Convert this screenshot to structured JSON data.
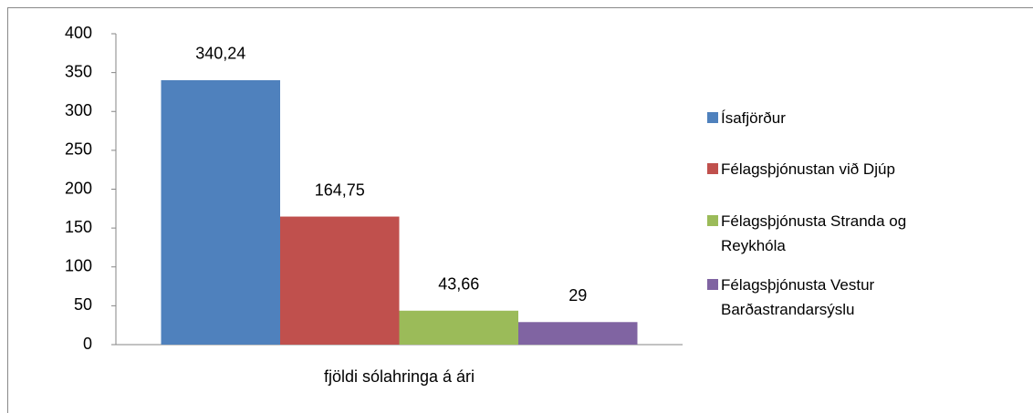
{
  "chart_data": {
    "type": "bar",
    "categories": [
      "fjöldi sólahringa á ári"
    ],
    "series": [
      {
        "name": "Ísafjörður",
        "color": "#4f81bd",
        "values": [
          340.24
        ],
        "value_labels": [
          "340,24"
        ]
      },
      {
        "name": "Félagsþjónustan við Djúp",
        "color": "#c0504d",
        "values": [
          164.75
        ],
        "value_labels": [
          "164,75"
        ]
      },
      {
        "name": "Félagsþjónusta Stranda og Reykhóla",
        "color": "#9bbb59",
        "values": [
          43.66
        ],
        "value_labels": [
          "43,66"
        ]
      },
      {
        "name": "Félagsþjónusta Vestur Barðastrandarsýslu",
        "color": "#8064a2",
        "values": [
          29
        ]
      }
    ],
    "ylim": [
      0,
      400
    ],
    "yticks": [
      0,
      50,
      100,
      150,
      200,
      250,
      300,
      350,
      400
    ],
    "grid": false,
    "legend": "right"
  }
}
